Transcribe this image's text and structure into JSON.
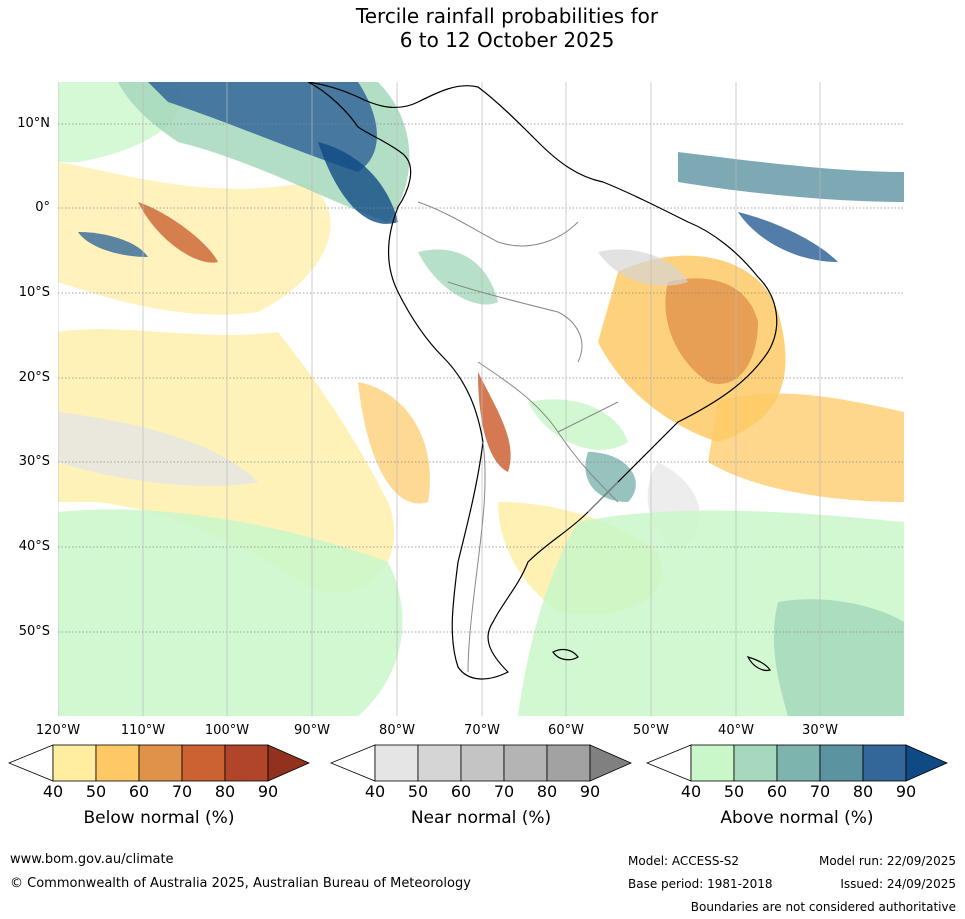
{
  "title": {
    "line1": "Tercile rainfall probabilities for",
    "line2": "6 to 12 October 2025"
  },
  "map": {
    "latitude_labels": [
      "10°N",
      "0°",
      "10°S",
      "20°S",
      "30°S",
      "40°S",
      "50°S"
    ],
    "longitude_labels": [
      "120°W",
      "110°W",
      "100°W",
      "90°W",
      "80°W",
      "70°W",
      "60°W",
      "50°W",
      "40°W",
      "30°W"
    ]
  },
  "legends": {
    "below": {
      "label": "Below normal (%)",
      "ticks": [
        "40",
        "50",
        "60",
        "70",
        "80",
        "90"
      ],
      "colors": [
        "#ffeda0",
        "#fec965",
        "#e0924a",
        "#cc6232",
        "#b0452a",
        "#90321e"
      ]
    },
    "near": {
      "label": "Near normal (%)",
      "ticks": [
        "40",
        "50",
        "60",
        "70",
        "80",
        "90"
      ],
      "colors": [
        "#e5e5e5",
        "#d5d5d5",
        "#c4c4c4",
        "#b4b4b4",
        "#a2a2a2",
        "#808080"
      ]
    },
    "above": {
      "label": "Above normal (%)",
      "ticks": [
        "40",
        "50",
        "60",
        "70",
        "80",
        "90"
      ],
      "colors": [
        "#c9f7c9",
        "#a5d8bc",
        "#7db4ae",
        "#5b93a0",
        "#336699",
        "#0f4a84"
      ]
    }
  },
  "footer": {
    "website": "www.bom.gov.au/climate",
    "copyright": "© Commonwealth of Australia 2025, Australian Bureau of Meteorology",
    "model": "Model: ACCESS-S2",
    "model_run": "Model run: 22/09/2025",
    "base_period": "Base period: 1981-2018",
    "issued": "Issued: 24/09/2025",
    "disclaimer": "Boundaries are not considered authoritative"
  }
}
